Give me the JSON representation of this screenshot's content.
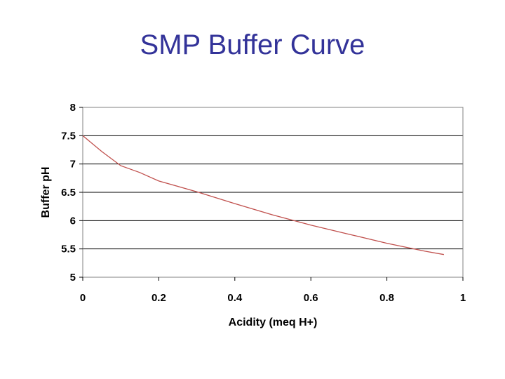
{
  "slide": {
    "title": "SMP Buffer Curve"
  },
  "chart_data": {
    "type": "line",
    "title": "",
    "xlabel": "Acidity (meq H+)",
    "ylabel": "Buffer pH",
    "xlim": [
      0,
      1
    ],
    "ylim": [
      5,
      8
    ],
    "x_ticks": [
      0,
      0.2,
      0.4,
      0.6,
      0.8,
      1
    ],
    "x_tick_labels": [
      "0",
      "0.2",
      "0.4",
      "0.6",
      "0.8",
      "1"
    ],
    "y_ticks": [
      5,
      5.5,
      6,
      6.5,
      7,
      7.5,
      8
    ],
    "y_tick_labels": [
      "5",
      "5.5",
      "6",
      "6.5",
      "7",
      "7.5",
      "8"
    ],
    "grid": "horizontal",
    "legend": "none",
    "line_color": "#c0504d",
    "series": [
      {
        "x": [
          0,
          0.05,
          0.1,
          0.15,
          0.2,
          0.3,
          0.4,
          0.5,
          0.6,
          0.7,
          0.8,
          0.9,
          0.95
        ],
        "y": [
          7.5,
          7.22,
          6.97,
          6.85,
          6.7,
          6.51,
          6.3,
          6.1,
          5.92,
          5.76,
          5.6,
          5.46,
          5.4
        ]
      }
    ]
  }
}
